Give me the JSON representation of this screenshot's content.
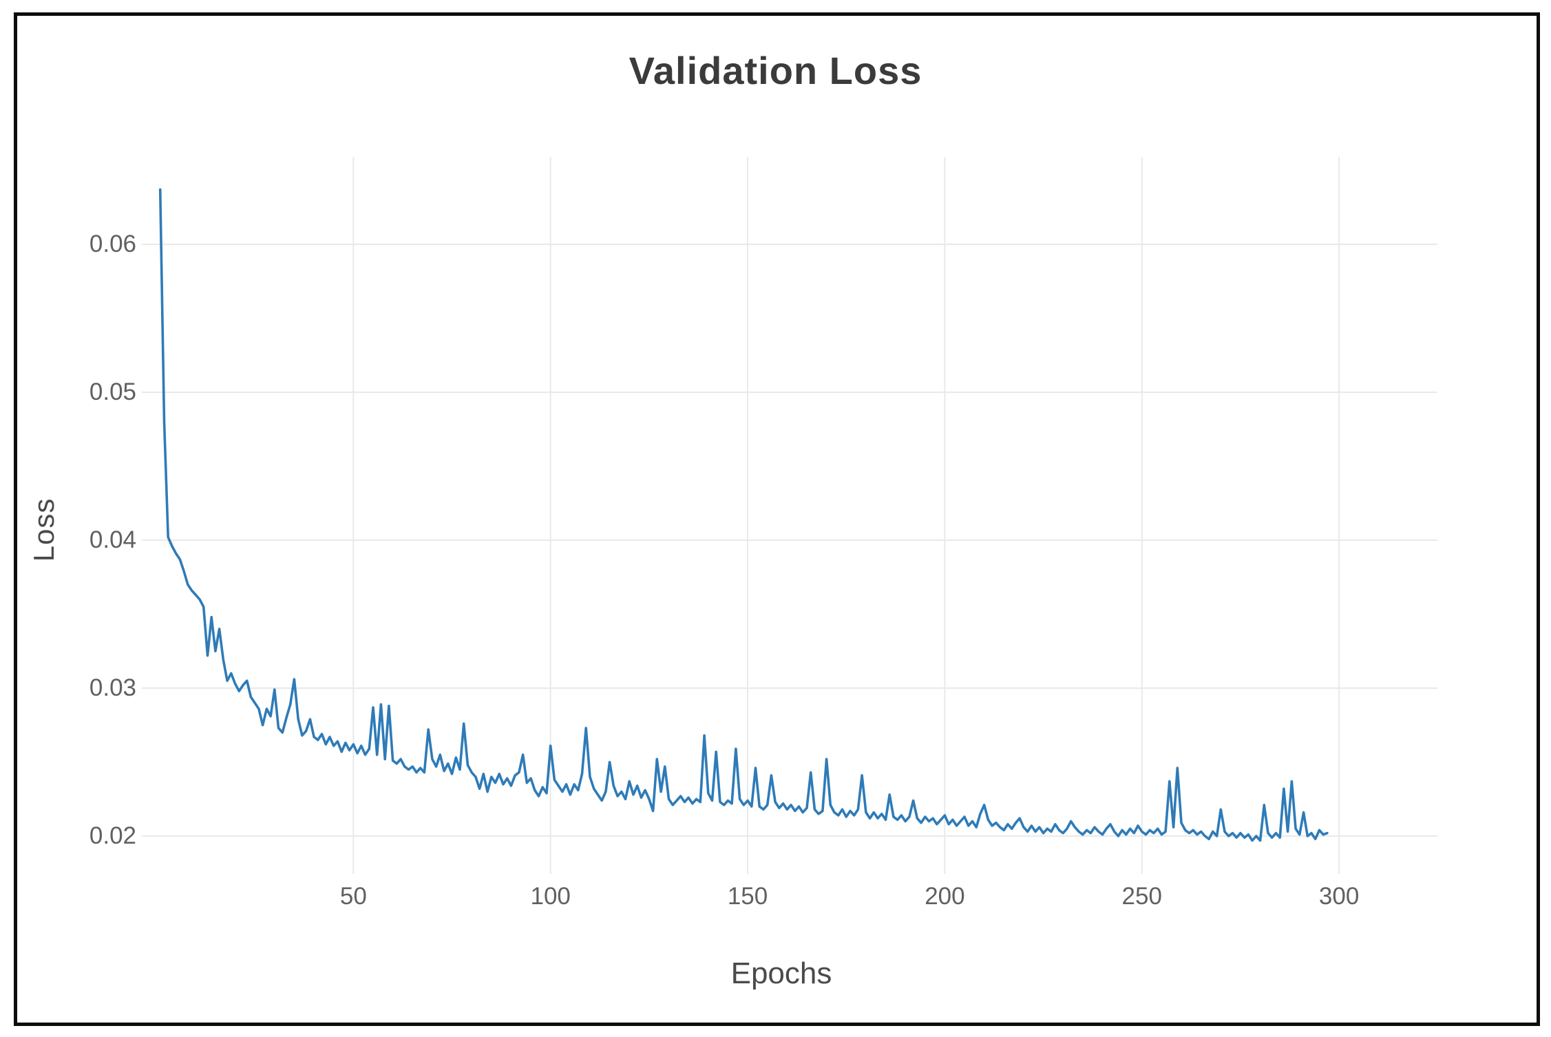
{
  "chart_data": {
    "type": "line",
    "title": "Validation Loss",
    "xlabel": "Epochs",
    "ylabel": "Loss",
    "grid": true,
    "legend": "none",
    "line_color": "#2e7bb8",
    "grid_color": "#e9e9e9",
    "tick_text_color": "#606060",
    "title_color": "#3b3b3b",
    "frame_color": "#0d0d0d",
    "xlim": [
      0,
      325
    ],
    "ylim": [
      0.0174,
      0.0656
    ],
    "xticks": [
      50,
      100,
      150,
      200,
      250,
      300
    ],
    "yticks": [
      0.06,
      0.05,
      0.04,
      0.03,
      0.02
    ],
    "xtick_labels": [
      "50",
      "100",
      "150",
      "200",
      "250",
      "300"
    ],
    "ytick_labels": [
      "0.06",
      "0.05",
      "0.04",
      "0.03",
      "0.02"
    ],
    "series": [
      {
        "name": "validation_loss",
        "x_start": 1,
        "x_step": 1,
        "values": [
          0.0637,
          0.048,
          0.0402,
          0.0396,
          0.0391,
          0.0387,
          0.0379,
          0.037,
          0.0366,
          0.0363,
          0.036,
          0.0355,
          0.0322,
          0.0348,
          0.0325,
          0.034,
          0.0319,
          0.0305,
          0.031,
          0.0303,
          0.0298,
          0.0302,
          0.0305,
          0.0294,
          0.029,
          0.0286,
          0.0275,
          0.0286,
          0.0281,
          0.0299,
          0.0273,
          0.027,
          0.028,
          0.0289,
          0.0306,
          0.0279,
          0.0268,
          0.0271,
          0.0279,
          0.0267,
          0.0265,
          0.0269,
          0.0262,
          0.0267,
          0.0261,
          0.0264,
          0.0257,
          0.0263,
          0.0258,
          0.0262,
          0.0256,
          0.0261,
          0.0255,
          0.0259,
          0.0287,
          0.0255,
          0.0289,
          0.0252,
          0.0288,
          0.0251,
          0.0249,
          0.0252,
          0.0247,
          0.0245,
          0.0247,
          0.0243,
          0.0246,
          0.0243,
          0.0272,
          0.0252,
          0.0247,
          0.0255,
          0.0244,
          0.0249,
          0.0242,
          0.0253,
          0.0245,
          0.0276,
          0.0248,
          0.0243,
          0.024,
          0.0232,
          0.0242,
          0.023,
          0.024,
          0.0236,
          0.0242,
          0.0235,
          0.0239,
          0.0234,
          0.0241,
          0.0243,
          0.0255,
          0.0236,
          0.0239,
          0.0231,
          0.0227,
          0.0233,
          0.0229,
          0.0261,
          0.0238,
          0.0234,
          0.023,
          0.0235,
          0.0228,
          0.0235,
          0.0231,
          0.0242,
          0.0273,
          0.024,
          0.0232,
          0.0228,
          0.0224,
          0.023,
          0.025,
          0.0234,
          0.0227,
          0.023,
          0.0225,
          0.0237,
          0.0228,
          0.0234,
          0.0226,
          0.0231,
          0.0225,
          0.0217,
          0.0252,
          0.023,
          0.0247,
          0.0225,
          0.0221,
          0.0224,
          0.0227,
          0.0223,
          0.0226,
          0.0222,
          0.0225,
          0.0223,
          0.0268,
          0.0229,
          0.0224,
          0.0257,
          0.0223,
          0.0221,
          0.0224,
          0.0222,
          0.0259,
          0.0225,
          0.0221,
          0.0224,
          0.022,
          0.0246,
          0.022,
          0.0218,
          0.0221,
          0.0241,
          0.0223,
          0.0219,
          0.0222,
          0.0218,
          0.0221,
          0.0217,
          0.022,
          0.0216,
          0.0219,
          0.0243,
          0.0218,
          0.0215,
          0.0217,
          0.0252,
          0.0221,
          0.0216,
          0.0214,
          0.0218,
          0.0213,
          0.0217,
          0.0214,
          0.0218,
          0.0241,
          0.0216,
          0.0212,
          0.0216,
          0.0212,
          0.0215,
          0.0211,
          0.0228,
          0.0213,
          0.0211,
          0.0214,
          0.021,
          0.0213,
          0.0224,
          0.0212,
          0.0209,
          0.0213,
          0.021,
          0.0212,
          0.0208,
          0.0211,
          0.0214,
          0.0208,
          0.0211,
          0.0207,
          0.021,
          0.0213,
          0.0207,
          0.021,
          0.0206,
          0.0215,
          0.0221,
          0.0211,
          0.0207,
          0.0209,
          0.0206,
          0.0204,
          0.0208,
          0.0205,
          0.0209,
          0.0212,
          0.0206,
          0.0203,
          0.0207,
          0.0203,
          0.0206,
          0.0202,
          0.0205,
          0.0203,
          0.0208,
          0.0204,
          0.0202,
          0.0205,
          0.021,
          0.0206,
          0.0203,
          0.0201,
          0.0204,
          0.0202,
          0.0206,
          0.0203,
          0.0201,
          0.0205,
          0.0208,
          0.0203,
          0.02,
          0.0204,
          0.0201,
          0.0205,
          0.0202,
          0.0207,
          0.0203,
          0.0201,
          0.0204,
          0.0202,
          0.0205,
          0.0201,
          0.0203,
          0.0237,
          0.0206,
          0.0246,
          0.0209,
          0.0204,
          0.0202,
          0.0204,
          0.0201,
          0.0203,
          0.02,
          0.0198,
          0.0203,
          0.02,
          0.0218,
          0.0203,
          0.02,
          0.0202,
          0.0199,
          0.0202,
          0.0199,
          0.0201,
          0.0197,
          0.02,
          0.0197,
          0.0221,
          0.0202,
          0.0199,
          0.0202,
          0.0199,
          0.0232,
          0.0203,
          0.0237,
          0.0205,
          0.0201,
          0.0216,
          0.02,
          0.0202,
          0.0198,
          0.0204,
          0.0201,
          0.0202
        ]
      }
    ]
  }
}
